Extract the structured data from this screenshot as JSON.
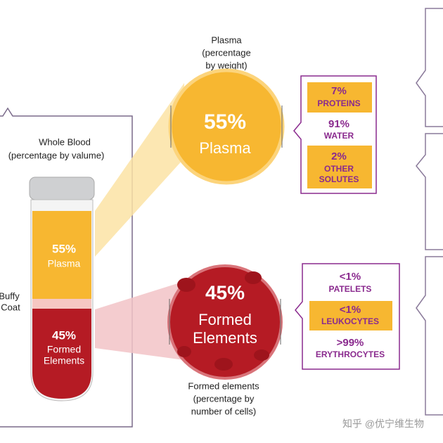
{
  "whole_blood": {
    "title": "Whole Blood",
    "subtitle": "(percentage by valume)",
    "tube_plasma": {
      "value": "55%",
      "label": "Plasma"
    },
    "tube_formed": {
      "value": "45%",
      "label": [
        "Formed",
        "Elements"
      ]
    },
    "buffy_coat": [
      "Buffy",
      "Coat"
    ]
  },
  "plasma": {
    "caption": [
      "Plasma",
      "(percentage",
      "by weight)"
    ],
    "value": "55%",
    "label": "Plasma",
    "items": [
      {
        "value": "7%",
        "label": [
          "PROTEINS"
        ]
      },
      {
        "value": "91%",
        "label": [
          "WATER"
        ]
      },
      {
        "value": "2%",
        "label": [
          "OTHER",
          "SOLUTES"
        ]
      }
    ]
  },
  "formed": {
    "caption": [
      "Formed elements",
      "(percentage by",
      "number of cells)"
    ],
    "value": "45%",
    "label": [
      "Formed",
      "Elements"
    ],
    "items": [
      {
        "value": "<1%",
        "label": [
          "PATELETS"
        ]
      },
      {
        "value": "<1%",
        "label": [
          "LEUKOCYTES"
        ]
      },
      {
        "value": ">99%",
        "label": [
          "ERYTHROCYTES"
        ]
      }
    ]
  },
  "watermark": "知乎 @优宁维生物"
}
